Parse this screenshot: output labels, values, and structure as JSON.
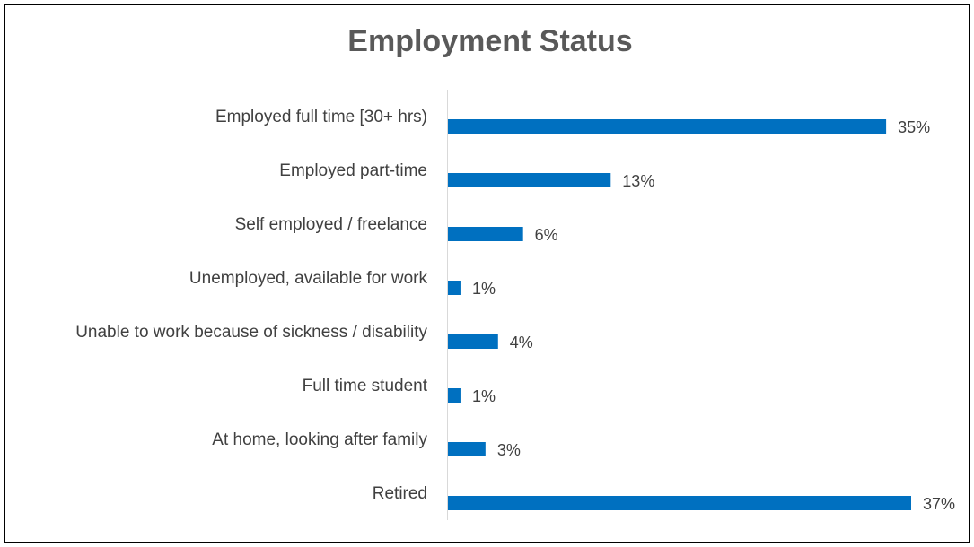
{
  "chart_data": {
    "type": "bar",
    "orientation": "horizontal",
    "title": "Employment Status",
    "categories": [
      "Employed full time [30+ hrs)",
      "Employed part-time",
      "Self employed / freelance",
      "Unemployed, available for work",
      "Unable to work because of sickness / disability",
      "Full time student",
      "At home, looking after family",
      "Retired"
    ],
    "values": [
      35,
      13,
      6,
      1,
      4,
      1,
      3,
      37
    ],
    "value_labels": [
      "35%",
      "13%",
      "6%",
      "1%",
      "4%",
      "1%",
      "3%",
      "37%"
    ],
    "color": "#0070c0"
  }
}
